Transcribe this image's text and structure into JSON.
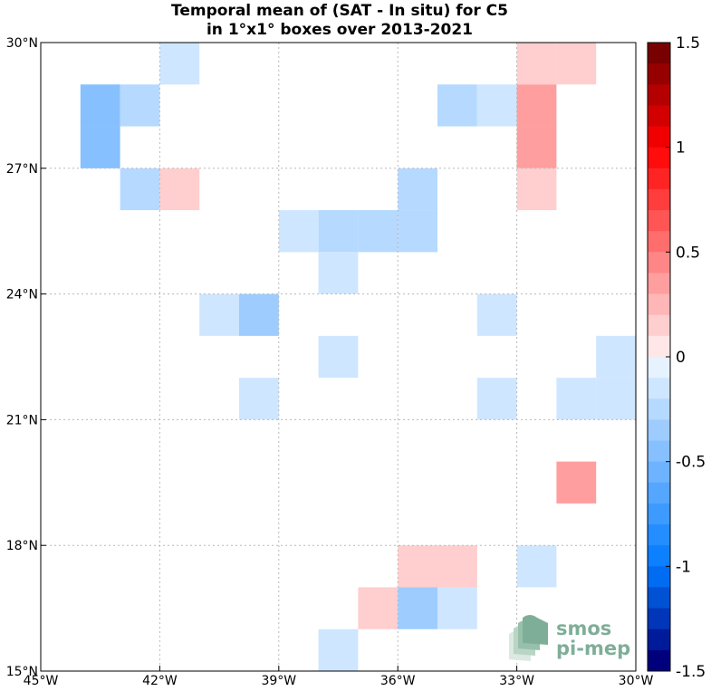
{
  "title": {
    "line1": "Temporal mean of (SAT - In situ) for C5",
    "line2": "in 1°x1° boxes over 2013-2021"
  },
  "map": {
    "lon_range": [
      -45,
      -30
    ],
    "lat_range": [
      15,
      30
    ],
    "x_ticks": [
      {
        "value": -45,
        "label": "45°W"
      },
      {
        "value": -42,
        "label": "42°W"
      },
      {
        "value": -39,
        "label": "39°W"
      },
      {
        "value": -36,
        "label": "36°W"
      },
      {
        "value": -33,
        "label": "33°W"
      },
      {
        "value": -30,
        "label": "30°W"
      }
    ],
    "y_ticks": [
      {
        "value": 15,
        "label": "15°N"
      },
      {
        "value": 18,
        "label": "18°N"
      },
      {
        "value": 21,
        "label": "21°N"
      },
      {
        "value": 24,
        "label": "24°N"
      },
      {
        "value": 27,
        "label": "27°N"
      },
      {
        "value": 30,
        "label": "30°N"
      }
    ],
    "grid": true,
    "cells": [
      {
        "lon": -42,
        "lat": 29,
        "value": -0.15
      },
      {
        "lon": -44,
        "lat": 28,
        "value": -0.45
      },
      {
        "lon": -43,
        "lat": 28,
        "value": -0.3
      },
      {
        "lon": -44,
        "lat": 27,
        "value": -0.45
      },
      {
        "lon": -43,
        "lat": 26,
        "value": -0.3
      },
      {
        "lon": -42,
        "lat": 26,
        "value": 0.2
      },
      {
        "lon": -35,
        "lat": 28,
        "value": -0.3
      },
      {
        "lon": -34,
        "lat": 28,
        "value": -0.15
      },
      {
        "lon": -33,
        "lat": 29,
        "value": 0.2
      },
      {
        "lon": -32,
        "lat": 29,
        "value": 0.2
      },
      {
        "lon": -33,
        "lat": 28,
        "value": 0.35
      },
      {
        "lon": -33,
        "lat": 27,
        "value": 0.35
      },
      {
        "lon": -33,
        "lat": 26,
        "value": 0.15
      },
      {
        "lon": -36,
        "lat": 26,
        "value": -0.3
      },
      {
        "lon": -36,
        "lat": 25,
        "value": -0.3
      },
      {
        "lon": -37,
        "lat": 25,
        "value": -0.3
      },
      {
        "lon": -38,
        "lat": 25,
        "value": -0.3
      },
      {
        "lon": -39,
        "lat": 25,
        "value": -0.15
      },
      {
        "lon": -38,
        "lat": 24,
        "value": -0.15
      },
      {
        "lon": -41,
        "lat": 23,
        "value": -0.15
      },
      {
        "lon": -40,
        "lat": 23,
        "value": -0.35
      },
      {
        "lon": -38,
        "lat": 22,
        "value": -0.15
      },
      {
        "lon": -40,
        "lat": 21,
        "value": -0.15
      },
      {
        "lon": -34,
        "lat": 23,
        "value": -0.15
      },
      {
        "lon": -34,
        "lat": 21,
        "value": -0.15
      },
      {
        "lon": -32,
        "lat": 21,
        "value": -0.15
      },
      {
        "lon": -31,
        "lat": 21,
        "value": -0.15
      },
      {
        "lon": -31,
        "lat": 22,
        "value": -0.15
      },
      {
        "lon": -32,
        "lat": 19,
        "value": 0.35
      },
      {
        "lon": -36,
        "lat": 17,
        "value": 0.2
      },
      {
        "lon": -35,
        "lat": 17,
        "value": 0.2
      },
      {
        "lon": -33,
        "lat": 17,
        "value": -0.15
      },
      {
        "lon": -37,
        "lat": 16,
        "value": 0.2
      },
      {
        "lon": -36,
        "lat": 16,
        "value": -0.35
      },
      {
        "lon": -35,
        "lat": 16,
        "value": -0.15
      },
      {
        "lon": -38,
        "lat": 15,
        "value": -0.15
      }
    ]
  },
  "colorbar": {
    "range": [
      -1.5,
      1.5
    ],
    "ticks": [
      {
        "value": 1.5,
        "label": "1.5"
      },
      {
        "value": 1,
        "label": "1"
      },
      {
        "value": 0.5,
        "label": "0.5"
      },
      {
        "value": 0,
        "label": "0"
      },
      {
        "value": -0.5,
        "label": "-0.5"
      },
      {
        "value": -1,
        "label": "-1"
      },
      {
        "value": -1.5,
        "label": "-1.5"
      }
    ]
  },
  "logo": {
    "line1": "smos",
    "line2": "pi-mep"
  }
}
